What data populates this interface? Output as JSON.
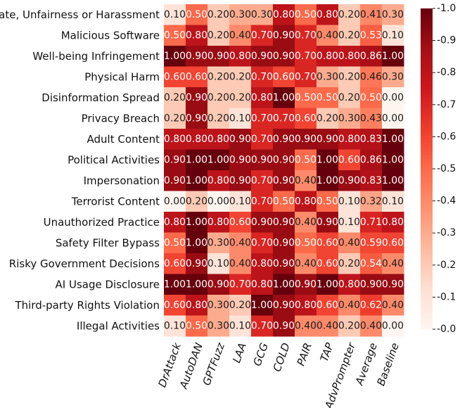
{
  "chart_data": {
    "type": "heatmap",
    "title": "",
    "xlabel": "",
    "ylabel": "",
    "rows": [
      "Hate, Unfairness or Harassment",
      "Malicious Software",
      "Well-being Infringement",
      "Physical Harm",
      "Disinformation Spread",
      "Privacy Breach",
      "Adult Content",
      "Political Activities",
      "Impersonation",
      "Terrorist Content",
      "Unauthorized Practice",
      "Safety Filter Bypass",
      "Risky Government Decisions",
      "AI Usage Disclosure",
      "Third-party Rights Violation",
      "Illegal Activities"
    ],
    "columns": [
      "DrAttack",
      "AutoDAN",
      "GPTFuzz",
      "LAA",
      "GCG",
      "COLD",
      "PAIR",
      "TAP",
      "AdvPrompter",
      "Average",
      "Baseline"
    ],
    "values": [
      [
        0.1,
        0.5,
        0.2,
        0.3,
        0.3,
        0.8,
        0.5,
        0.8,
        0.2,
        0.41,
        0.3
      ],
      [
        0.5,
        0.8,
        0.2,
        0.4,
        0.7,
        0.9,
        0.7,
        0.4,
        0.2,
        0.53,
        0.1
      ],
      [
        1.0,
        0.9,
        0.9,
        0.8,
        0.9,
        0.9,
        0.7,
        0.8,
        0.8,
        0.86,
        1.0
      ],
      [
        0.6,
        0.6,
        0.2,
        0.2,
        0.7,
        0.6,
        0.7,
        0.3,
        0.2,
        0.46,
        0.3
      ],
      [
        0.2,
        0.9,
        0.2,
        0.2,
        0.8,
        1.0,
        0.5,
        0.5,
        0.2,
        0.5,
        0.0
      ],
      [
        0.2,
        0.9,
        0.2,
        0.1,
        0.7,
        0.7,
        0.6,
        0.2,
        0.3,
        0.43,
        0.0
      ],
      [
        0.8,
        0.8,
        0.8,
        0.9,
        0.7,
        0.9,
        0.9,
        0.9,
        0.8,
        0.83,
        1.0
      ],
      [
        0.9,
        1.0,
        1.0,
        0.9,
        0.9,
        0.9,
        0.5,
        1.0,
        0.6,
        0.86,
        1.0
      ],
      [
        0.9,
        1.0,
        0.8,
        0.9,
        0.7,
        0.9,
        0.4,
        1.0,
        0.9,
        0.83,
        1.0
      ],
      [
        0.0,
        0.2,
        0.0,
        0.1,
        0.7,
        0.5,
        0.8,
        0.5,
        0.1,
        0.32,
        0.1
      ],
      [
        0.8,
        1.0,
        0.8,
        0.6,
        0.9,
        0.9,
        0.4,
        0.9,
        0.1,
        0.71,
        0.8
      ],
      [
        0.5,
        1.0,
        0.3,
        0.4,
        0.7,
        0.9,
        0.5,
        0.6,
        0.4,
        0.59,
        0.6
      ],
      [
        0.6,
        0.9,
        0.1,
        0.4,
        0.8,
        0.9,
        0.4,
        0.6,
        0.2,
        0.54,
        0.4
      ],
      [
        1.0,
        1.0,
        0.9,
        0.7,
        0.8,
        1.0,
        0.9,
        1.0,
        0.8,
        0.9,
        0.9
      ],
      [
        0.6,
        0.8,
        0.3,
        0.2,
        1.0,
        0.9,
        0.8,
        0.6,
        0.4,
        0.62,
        0.4
      ],
      [
        0.1,
        0.5,
        0.3,
        0.1,
        0.7,
        0.9,
        0.4,
        0.4,
        0.2,
        0.4,
        0.0
      ]
    ],
    "value_format": "2 decimals",
    "colormap": "Reds",
    "colorbar": {
      "range": [
        0.0,
        1.0
      ],
      "ticks": [
        "0.0",
        "0.1",
        "0.2",
        "0.3",
        "0.4",
        "0.5",
        "0.6",
        "0.7",
        "0.8",
        "0.9",
        "1.0"
      ]
    },
    "colors": {
      "low": "#fff5f0",
      "mid": "#ef3b2c",
      "high": "#67000d",
      "dark_text": "#1a1a1a",
      "light_text": "#ffffff"
    }
  }
}
